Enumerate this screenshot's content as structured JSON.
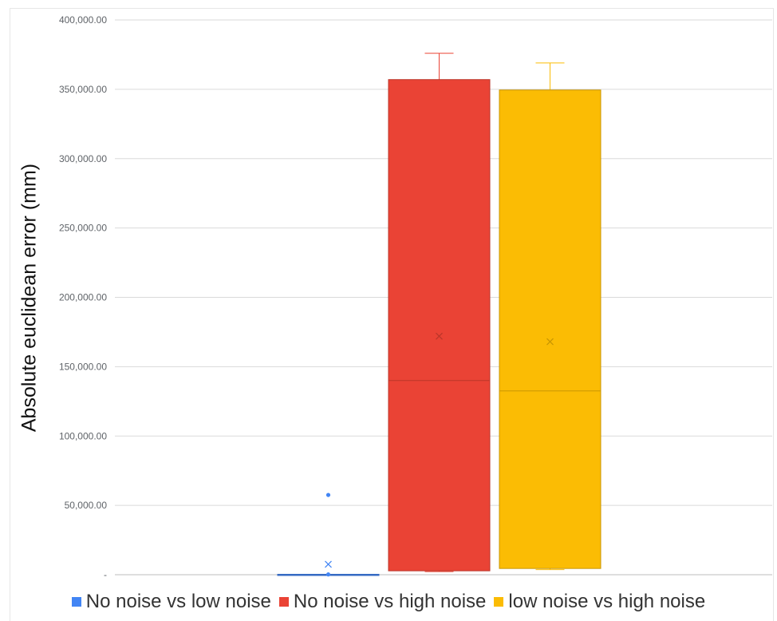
{
  "chart_data": {
    "type": "boxplot",
    "title": "",
    "ylabel": "Absolute euclidean error (mm)",
    "xlabel": "",
    "ylim": [
      0,
      400000
    ],
    "y_ticks": [
      {
        "value": 0,
        "label": "-"
      },
      {
        "value": 50000,
        "label": "50,000.00"
      },
      {
        "value": 100000,
        "label": "100,000.00"
      },
      {
        "value": 150000,
        "label": "150,000.00"
      },
      {
        "value": 200000,
        "label": "200,000.00"
      },
      {
        "value": 250000,
        "label": "250,000.00"
      },
      {
        "value": 300000,
        "label": "300,000.00"
      },
      {
        "value": 350000,
        "label": "350,000.00"
      },
      {
        "value": 400000,
        "label": "400,000.00"
      }
    ],
    "grid": true,
    "legend_position": "bottom",
    "series": [
      {
        "name": "No noise vs low noise",
        "color": "#4285f4",
        "min": 0,
        "q1": 0,
        "median": 0,
        "q3": 300,
        "max": 300,
        "mean": 7500,
        "outliers": [
          57500,
          200
        ]
      },
      {
        "name": "No noise vs high noise",
        "color": "#ea4335",
        "min": 2200,
        "q1": 2800,
        "median": 140000,
        "q3": 357000,
        "max": 376000,
        "mean": 172000,
        "outliers": []
      },
      {
        "name": "low noise vs high noise",
        "color": "#fbbc04",
        "min": 3700,
        "q1": 4500,
        "median": 132500,
        "q3": 349500,
        "max": 369000,
        "mean": 168000,
        "outliers": []
      }
    ]
  }
}
